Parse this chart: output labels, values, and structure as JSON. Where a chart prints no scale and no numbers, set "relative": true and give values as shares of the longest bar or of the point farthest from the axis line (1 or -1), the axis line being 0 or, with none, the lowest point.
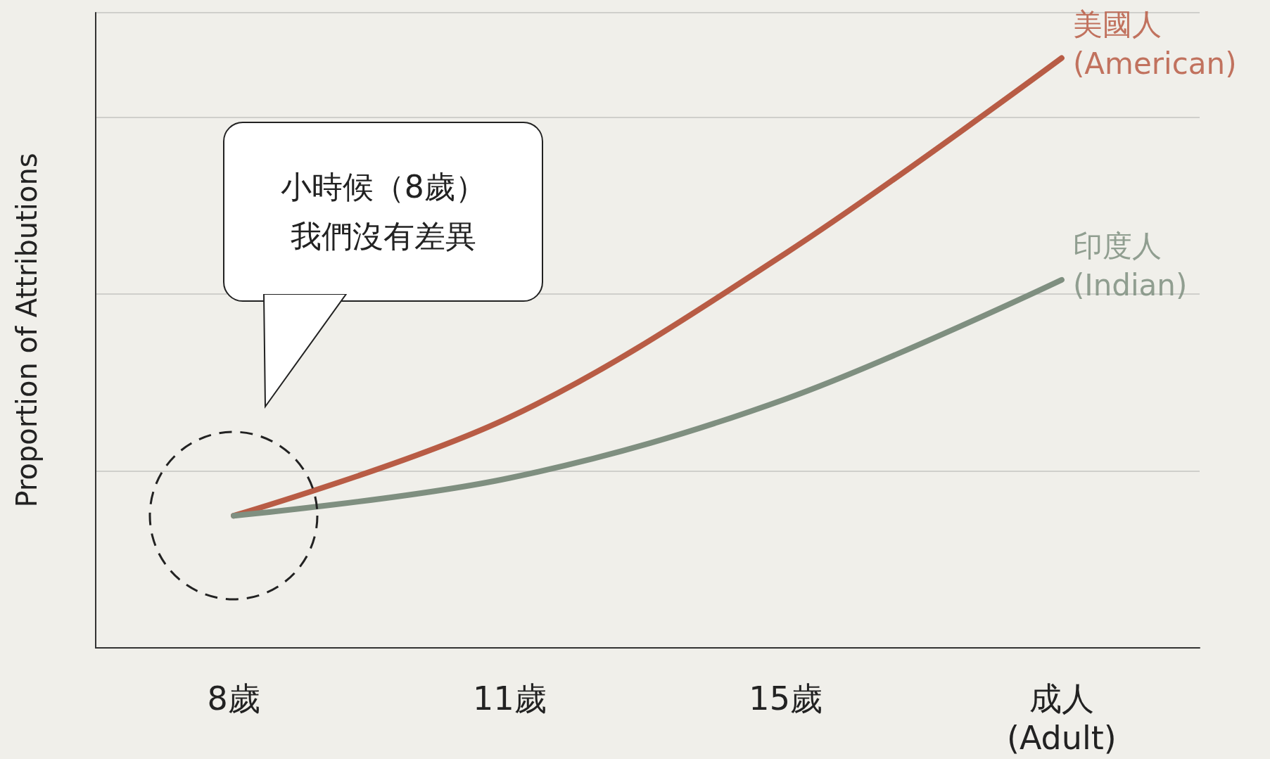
{
  "chart_data": {
    "type": "line",
    "relative": true,
    "ylabel": "Proportion of Attributions",
    "categories": [
      "8歲",
      "11歲",
      "15歲",
      "成人\n(Adult)"
    ],
    "series": [
      {
        "name": "美國人\n(American)",
        "color": "#b85c45",
        "values": [
          0.224,
          0.391,
          0.669,
          1
        ]
      },
      {
        "name": "印度人\n(Indian)",
        "color": "#7f8f80",
        "values": [
          0.224,
          0.288,
          0.422,
          0.624
        ]
      }
    ],
    "annotations": [
      "小時候（8歲）我們沒有差異"
    ],
    "grid": "y",
    "legend": false,
    "marker": "none",
    "line_style": "solid"
  }
}
